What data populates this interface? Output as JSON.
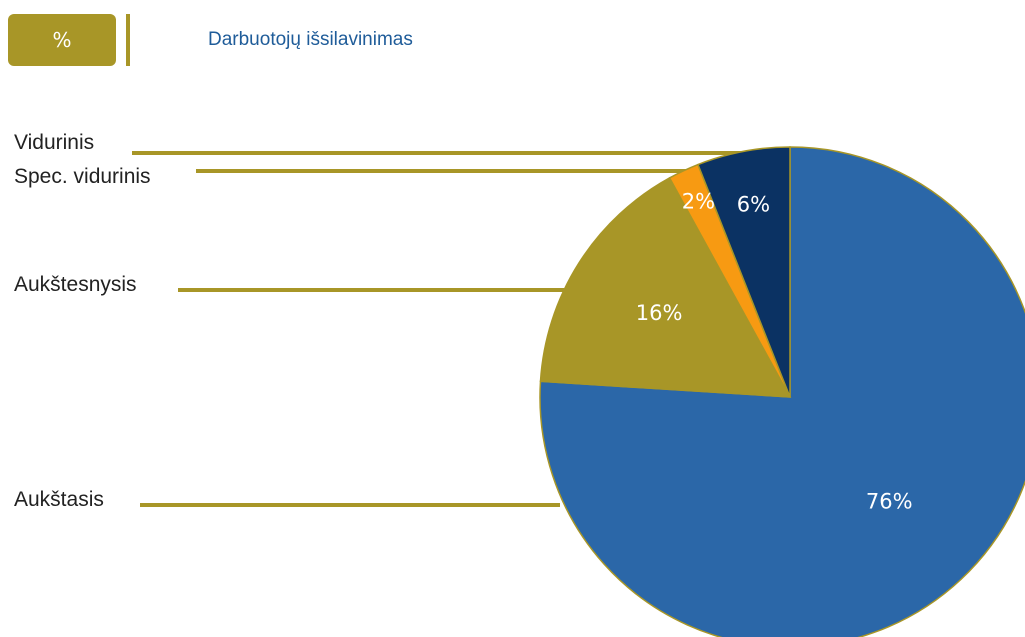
{
  "header": {
    "badge_text": "%",
    "title": "Darbuotojų išsilavinimas"
  },
  "colors": {
    "accent": "#A89627",
    "title": "#1F5C99"
  },
  "chart_data": {
    "type": "pie",
    "title": "Darbuotojų išsilavinimas",
    "slices": [
      {
        "label": "Aukštasis",
        "value": 76,
        "value_label": "76%",
        "color": "#2B67A8"
      },
      {
        "label": "Aukštesnysis",
        "value": 16,
        "value_label": "16%",
        "color": "#A89627"
      },
      {
        "label": "Spec. vidurinis",
        "value": 2,
        "value_label": "2%",
        "color": "#F79A12"
      },
      {
        "label": "Vidurinis",
        "value": 6,
        "value_label": "6%",
        "color": "#0B3263"
      }
    ],
    "start_angle_deg": 0,
    "direction": "clockwise"
  }
}
